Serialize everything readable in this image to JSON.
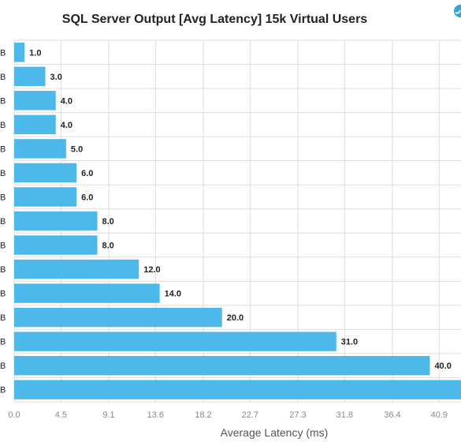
{
  "colors": {
    "bar": "#4db8ea",
    "grid": "#dddddd",
    "text": "#222222",
    "tick": "#888888",
    "icon": "#29a8e0"
  },
  "icons": {
    "corner": "partial-circle-icon"
  },
  "chart_data": {
    "type": "bar",
    "orientation": "horizontal",
    "title": "SQL Server Output [Avg Latency] 15k Virtual Users",
    "xlabel": "Average Latency (ms)",
    "category_labels": [
      "B",
      "B",
      "B",
      "B",
      "B",
      "B",
      "B",
      "B",
      "B",
      "B",
      "B",
      "B",
      "B",
      "B",
      "B"
    ],
    "values": [
      1.0,
      3.0,
      4.0,
      4.0,
      5.0,
      6.0,
      6.0,
      8.0,
      8.0,
      12.0,
      14.0,
      20.0,
      31.0,
      40.0,
      43.6
    ],
    "data_labels": [
      "1.0",
      "3.0",
      "4.0",
      "4.0",
      "5.0",
      "6.0",
      "6.0",
      "8.0",
      "8.0",
      "12.0",
      "14.0",
      "20.0",
      "31.0",
      "40.0",
      ""
    ],
    "x_ticks": [
      "0.0",
      "4.5",
      "9.1",
      "13.6",
      "18.2",
      "22.7",
      "27.3",
      "31.8",
      "36.4",
      "40.9"
    ],
    "xlim": [
      0,
      43
    ],
    "grid": true,
    "legend": "none"
  }
}
